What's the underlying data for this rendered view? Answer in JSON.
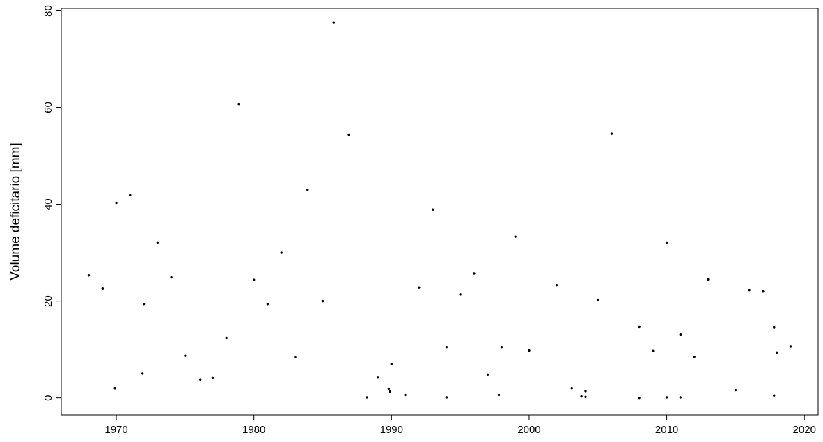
{
  "chart_data": {
    "type": "scatter",
    "title": "",
    "xlabel": "",
    "ylabel": "Volume deficitario [mm]",
    "xlim": [
      1966,
      2021
    ],
    "ylim": [
      -3.5,
      80.5
    ],
    "xticks": [
      1970,
      1980,
      1990,
      2000,
      2010,
      2020
    ],
    "yticks": [
      0,
      20,
      40,
      60,
      80
    ],
    "grid": false,
    "legend": "none",
    "marker_color": "#000000",
    "series": [
      {
        "points": [
          [
            1968.0,
            25.3
          ],
          [
            1969.0,
            22.6
          ],
          [
            1969.9,
            2.0
          ],
          [
            1970.0,
            40.3
          ],
          [
            1971.0,
            41.9
          ],
          [
            1971.9,
            5.0
          ],
          [
            1972.0,
            19.4
          ],
          [
            1973.0,
            32.1
          ],
          [
            1974.0,
            24.9
          ],
          [
            1975.0,
            8.7
          ],
          [
            1976.1,
            3.8
          ],
          [
            1977.0,
            4.2
          ],
          [
            1978.0,
            12.4
          ],
          [
            1978.9,
            60.7
          ],
          [
            1980.0,
            24.4
          ],
          [
            1981.0,
            19.4
          ],
          [
            1982.0,
            30.0
          ],
          [
            1983.0,
            8.4
          ],
          [
            1983.9,
            43.0
          ],
          [
            1985.0,
            20.0
          ],
          [
            1985.8,
            77.6
          ],
          [
            1986.9,
            54.4
          ],
          [
            1988.2,
            0.1
          ],
          [
            1989.0,
            4.3
          ],
          [
            1989.8,
            1.9
          ],
          [
            1989.9,
            1.3
          ],
          [
            1990.0,
            7.0
          ],
          [
            1991.0,
            0.6
          ],
          [
            1992.0,
            22.8
          ],
          [
            1993.0,
            38.9
          ],
          [
            1994.0,
            10.5
          ],
          [
            1994.0,
            0.1
          ],
          [
            1995.0,
            21.4
          ],
          [
            1996.0,
            25.7
          ],
          [
            1997.0,
            4.8
          ],
          [
            1997.8,
            0.6
          ],
          [
            1998.0,
            10.5
          ],
          [
            1999.0,
            33.3
          ],
          [
            2000.0,
            9.8
          ],
          [
            2002.0,
            23.3
          ],
          [
            2003.1,
            2.0
          ],
          [
            2003.8,
            0.3
          ],
          [
            2004.1,
            0.2
          ],
          [
            2004.1,
            1.4
          ],
          [
            2005.0,
            20.3
          ],
          [
            2006.0,
            54.6
          ],
          [
            2008.0,
            14.7
          ],
          [
            2008.0,
            0.0
          ],
          [
            2009.0,
            9.7
          ],
          [
            2010.0,
            32.1
          ],
          [
            2010.0,
            0.1
          ],
          [
            2011.0,
            13.1
          ],
          [
            2011.0,
            0.1
          ],
          [
            2012.0,
            8.5
          ],
          [
            2013.0,
            24.5
          ],
          [
            2015.0,
            1.6
          ],
          [
            2016.0,
            22.3
          ],
          [
            2017.0,
            22.0
          ],
          [
            2017.8,
            14.6
          ],
          [
            2017.8,
            0.5
          ],
          [
            2018.0,
            9.4
          ],
          [
            2019.0,
            10.6
          ]
        ]
      }
    ]
  }
}
